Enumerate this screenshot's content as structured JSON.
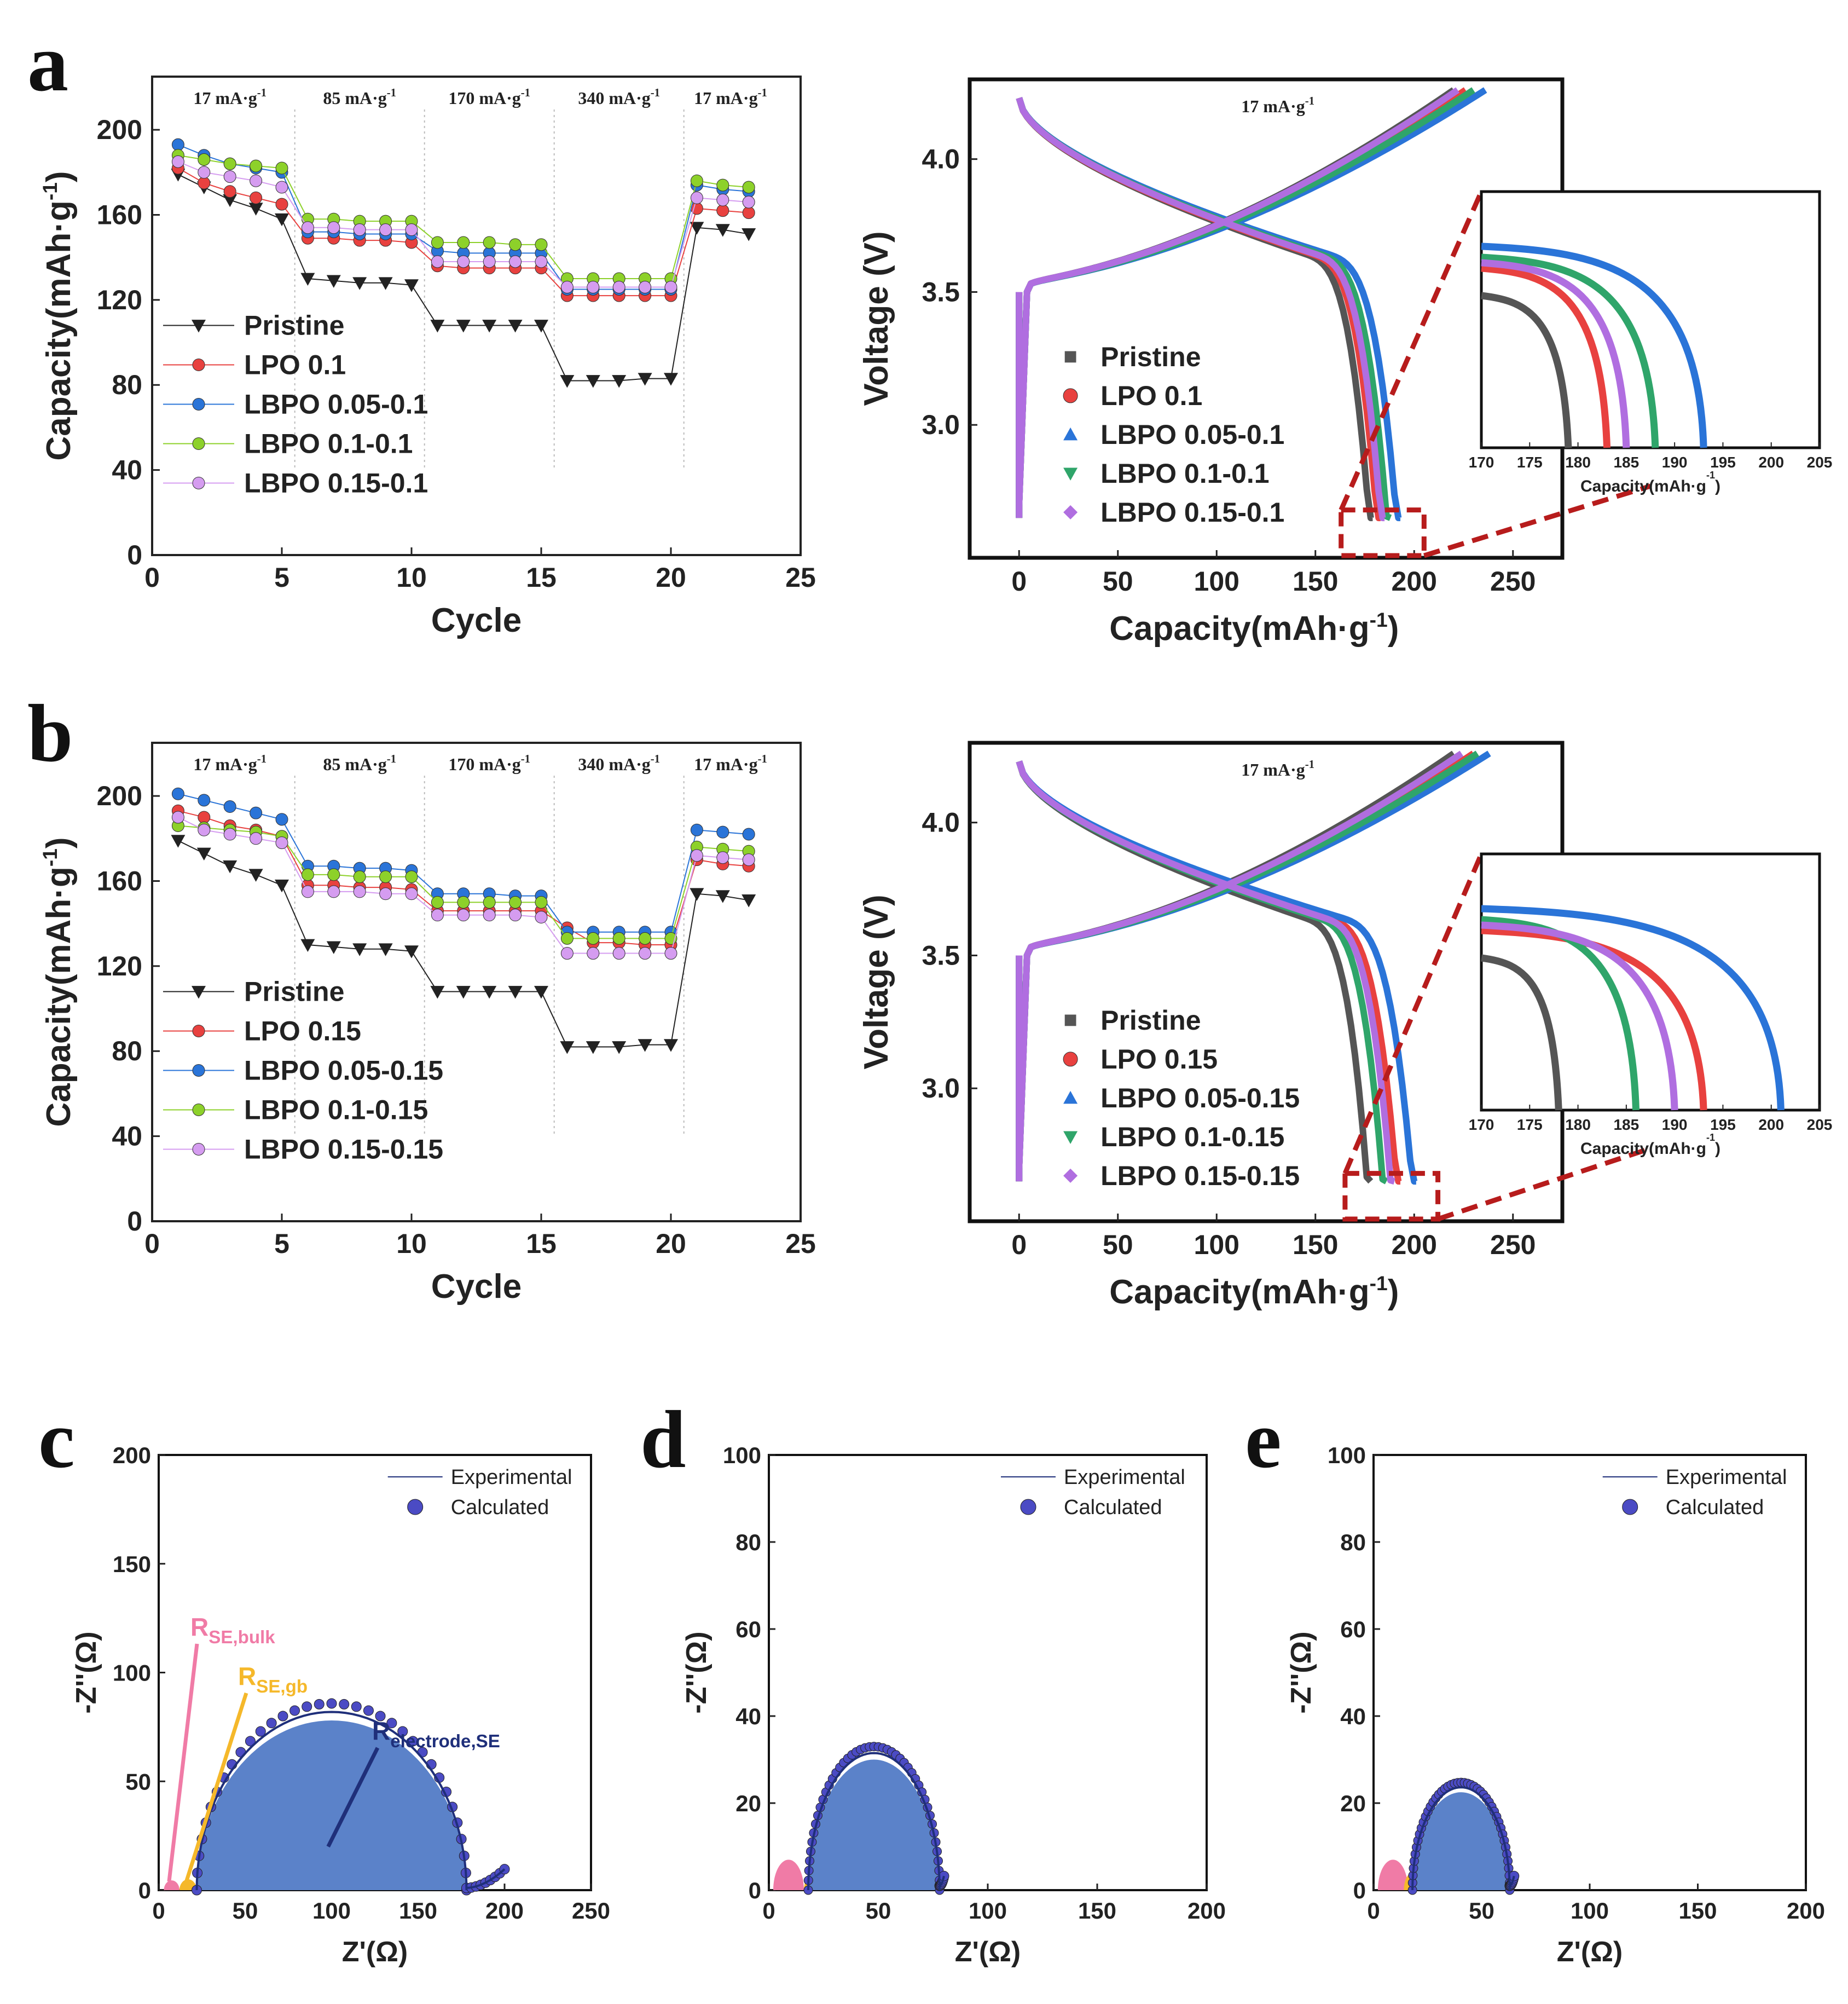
{
  "panels": {
    "a": "a",
    "b": "b",
    "c": "c",
    "d": "d",
    "e": "e"
  },
  "colors": {
    "pristine": "#555555",
    "lpo": "#e8413f",
    "lbpo005": "#2a74d8",
    "lbpo01": "#2fa56a",
    "lbpo015": "#b06ee0",
    "rate_pristine": "#222222",
    "rate_lpo": "#e8413f",
    "rate_lbpo005": "#2a74d8",
    "rate_lbpo01": "#8dd12a",
    "rate_lbpo015": "#d59cf0",
    "calc": "#4b4bc4",
    "eis_fill": "#5b82c9",
    "pink": "#f07ba6",
    "yellow": "#f5b82a",
    "navy": "#1f2f7a",
    "dashed": "#b71c1c"
  },
  "chart_data": [
    {
      "id": "a-rate",
      "type": "line",
      "segment_labels": [
        "17 mA·g⁻¹",
        "85 mA·g⁻¹",
        "170 mA·g⁻¹",
        "340 mA·g⁻¹",
        "17 mA·g⁻¹"
      ],
      "xlabel": "Cycle",
      "ylabel": "Capacity(mAh·g⁻¹)",
      "xlim": [
        0,
        25
      ],
      "ylim": [
        0,
        225
      ],
      "xticks": [
        "0",
        "5",
        "10",
        "15",
        "20",
        "25"
      ],
      "yticks": [
        "0",
        "40",
        "80",
        "120",
        "160",
        "200"
      ],
      "x": [
        1,
        2,
        3,
        4,
        5,
        6,
        7,
        8,
        9,
        10,
        11,
        12,
        13,
        14,
        15,
        16,
        17,
        18,
        19,
        20,
        21,
        22,
        23
      ],
      "series": [
        {
          "name": "Pristine",
          "values": [
            179,
            173,
            167,
            163,
            158,
            130,
            129,
            128,
            128,
            127,
            108,
            108,
            108,
            108,
            108,
            82,
            82,
            82,
            83,
            83,
            154,
            153,
            151
          ]
        },
        {
          "name": "LPO 0.1",
          "values": [
            182,
            175,
            171,
            168,
            165,
            149,
            149,
            148,
            148,
            147,
            136,
            135,
            135,
            135,
            135,
            122,
            122,
            122,
            122,
            122,
            163,
            162,
            161
          ]
        },
        {
          "name": "LBPO 0.05-0.1",
          "values": [
            193,
            188,
            184,
            182,
            180,
            152,
            152,
            151,
            151,
            151,
            143,
            142,
            142,
            142,
            142,
            125,
            125,
            125,
            125,
            125,
            174,
            172,
            171
          ]
        },
        {
          "name": "LBPO 0.1-0.1",
          "values": [
            188,
            186,
            184,
            183,
            182,
            158,
            158,
            157,
            157,
            157,
            147,
            147,
            147,
            146,
            146,
            130,
            130,
            130,
            130,
            130,
            176,
            174,
            173
          ]
        },
        {
          "name": "LBPO 0.15-0.1",
          "values": [
            185,
            180,
            178,
            176,
            173,
            154,
            154,
            153,
            153,
            153,
            138,
            138,
            138,
            138,
            138,
            126,
            126,
            126,
            126,
            126,
            168,
            167,
            166
          ]
        }
      ]
    },
    {
      "id": "a-voltage",
      "type": "line",
      "annotation": "17 mA·g⁻¹",
      "xlabel": "Capacity(mAh·g⁻¹)",
      "ylabel": "Voltage (V)",
      "xlim": [
        -25,
        275
      ],
      "ylim": [
        2.5,
        4.3
      ],
      "xticks": [
        "0",
        "50",
        "100",
        "150",
        "200",
        "250"
      ],
      "yticks": [
        "3.0",
        "3.5",
        "4.0"
      ],
      "series": [
        {
          "name": "Pristine",
          "discharge_end": 179,
          "charge_end": 220
        },
        {
          "name": "LPO 0.1",
          "discharge_end": 183,
          "charge_end": 226
        },
        {
          "name": "LBPO 0.05-0.1",
          "discharge_end": 193,
          "charge_end": 236
        },
        {
          "name": "LBPO 0.1-0.1",
          "discharge_end": 188,
          "charge_end": 230
        },
        {
          "name": "LBPO 0.15-0.1",
          "discharge_end": 185,
          "charge_end": 222
        }
      ],
      "inset": {
        "xlabel": "Capacity(mAh·g⁻¹)",
        "xlim": [
          170,
          205
        ],
        "xticks": [
          "170",
          "175",
          "180",
          "185",
          "190",
          "195",
          "200",
          "205"
        ]
      }
    },
    {
      "id": "b-rate",
      "type": "line",
      "segment_labels": [
        "17 mA·g⁻¹",
        "85 mA·g⁻¹",
        "170 mA·g⁻¹",
        "340 mA·g⁻¹",
        "17 mA·g⁻¹"
      ],
      "xlabel": "Cycle",
      "ylabel": "Capacity(mAh·g⁻¹)",
      "xlim": [
        0,
        25
      ],
      "ylim": [
        0,
        225
      ],
      "xticks": [
        "0",
        "5",
        "10",
        "15",
        "20",
        "25"
      ],
      "yticks": [
        "0",
        "40",
        "80",
        "120",
        "160",
        "200"
      ],
      "x": [
        1,
        2,
        3,
        4,
        5,
        6,
        7,
        8,
        9,
        10,
        11,
        12,
        13,
        14,
        15,
        16,
        17,
        18,
        19,
        20,
        21,
        22,
        23
      ],
      "series": [
        {
          "name": "Pristine",
          "values": [
            179,
            173,
            167,
            163,
            158,
            130,
            129,
            128,
            128,
            127,
            108,
            108,
            108,
            108,
            108,
            82,
            82,
            82,
            83,
            83,
            154,
            153,
            151
          ]
        },
        {
          "name": "LPO 0.15",
          "values": [
            193,
            190,
            186,
            184,
            181,
            158,
            158,
            157,
            157,
            156,
            146,
            146,
            146,
            146,
            146,
            138,
            131,
            131,
            130,
            130,
            170,
            168,
            167
          ]
        },
        {
          "name": "LBPO 0.05-0.15",
          "values": [
            201,
            198,
            195,
            192,
            189,
            167,
            167,
            166,
            166,
            165,
            154,
            154,
            154,
            153,
            153,
            136,
            136,
            136,
            136,
            136,
            184,
            183,
            182
          ]
        },
        {
          "name": "LBPO 0.1-0.15",
          "values": [
            186,
            185,
            184,
            183,
            181,
            163,
            163,
            162,
            162,
            162,
            150,
            150,
            150,
            150,
            150,
            133,
            133,
            133,
            133,
            133,
            176,
            175,
            174
          ]
        },
        {
          "name": "LBPO 0.15-0.15",
          "values": [
            190,
            184,
            182,
            180,
            178,
            155,
            155,
            155,
            154,
            154,
            144,
            144,
            144,
            144,
            143,
            126,
            126,
            126,
            126,
            126,
            172,
            171,
            170
          ]
        }
      ]
    },
    {
      "id": "b-voltage",
      "type": "line",
      "annotation": "17 mA·g⁻¹",
      "xlabel": "Capacity(mAh·g⁻¹)",
      "ylabel": "Voltage (V)",
      "xlim": [
        -25,
        275
      ],
      "ylim": [
        2.5,
        4.3
      ],
      "xticks": [
        "0",
        "50",
        "100",
        "150",
        "200",
        "250"
      ],
      "yticks": [
        "3.0",
        "3.5",
        "4.0"
      ],
      "series": [
        {
          "name": "Pristine",
          "discharge_end": 178,
          "charge_end": 220
        },
        {
          "name": "LPO 0.15",
          "discharge_end": 193,
          "charge_end": 230
        },
        {
          "name": "LBPO 0.05-0.15",
          "discharge_end": 201,
          "charge_end": 238
        },
        {
          "name": "LBPO 0.1-0.15",
          "discharge_end": 186,
          "charge_end": 232
        },
        {
          "name": "LBPO 0.15-0.15",
          "discharge_end": 190,
          "charge_end": 224
        }
      ],
      "inset": {
        "xlabel": "Capacity(mAh·g⁻¹)",
        "xlim": [
          170,
          205
        ],
        "xticks": [
          "170",
          "175",
          "180",
          "185",
          "190",
          "195",
          "200",
          "205"
        ]
      }
    },
    {
      "id": "c-eis",
      "type": "scatter",
      "xlabel": "Z'(Ω)",
      "ylabel": "-Z''(Ω)",
      "xlim": [
        0,
        250
      ],
      "ylim": [
        0,
        200
      ],
      "xticks": [
        "0",
        "50",
        "100",
        "150",
        "200",
        "250"
      ],
      "yticks": [
        "0",
        "50",
        "100",
        "150",
        "200"
      ],
      "legend": [
        "Experimental",
        "Calculated"
      ],
      "arcs": {
        "pink": [
          3,
          12
        ],
        "yellow": [
          12,
          22
        ],
        "blue": [
          22,
          178
        ],
        "tail_end": 200
      },
      "labels": [
        {
          "main": "R",
          "sub": "SE,bulk"
        },
        {
          "main": "R",
          "sub": "SE,gb"
        },
        {
          "main": "R",
          "sub": "electrode,SE"
        }
      ]
    },
    {
      "id": "d-eis",
      "type": "scatter",
      "xlabel": "Z'(Ω)",
      "ylabel": "-Z''(Ω)",
      "xlim": [
        0,
        200
      ],
      "ylim": [
        0,
        100
      ],
      "xticks": [
        "0",
        "50",
        "100",
        "150",
        "200"
      ],
      "yticks": [
        "0",
        "20",
        "40",
        "60",
        "80",
        "100"
      ],
      "legend": [
        "Experimental",
        "Calculated"
      ],
      "arcs": {
        "pink": [
          2,
          16
        ],
        "yellow": [
          16,
          22
        ],
        "blue": [
          18,
          78
        ],
        "tail_end": 80
      }
    },
    {
      "id": "e-eis",
      "type": "scatter",
      "xlabel": "Z'(Ω)",
      "ylabel": "-Z''(Ω)",
      "xlim": [
        0,
        200
      ],
      "ylim": [
        0,
        100
      ],
      "xticks": [
        "0",
        "50",
        "100",
        "150",
        "200"
      ],
      "yticks": [
        "0",
        "20",
        "40",
        "60",
        "80",
        "100"
      ],
      "legend": [
        "Experimental",
        "Calculated"
      ],
      "arcs": {
        "pink": [
          2,
          16
        ],
        "yellow": [
          14,
          22
        ],
        "blue": [
          18,
          63
        ],
        "tail_end": 65
      }
    }
  ]
}
